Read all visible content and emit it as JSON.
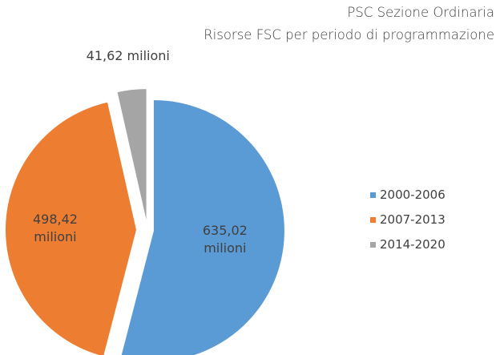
{
  "chart_data": {
    "type": "pie",
    "title": "PSC Sezione Ordinaria",
    "subtitle": "Risorse FSC per periodo di programmazione",
    "categories": [
      "2000-2006",
      "2007-2013",
      "2014-2020"
    ],
    "values": [
      635.02,
      498.42,
      41.62
    ],
    "value_labels": [
      "635,02 milioni",
      "498,42 milioni",
      "41,62 milioni"
    ],
    "colors": [
      "#5b9bd5",
      "#ed7d31",
      "#a5a5a5"
    ],
    "legend": "right"
  }
}
